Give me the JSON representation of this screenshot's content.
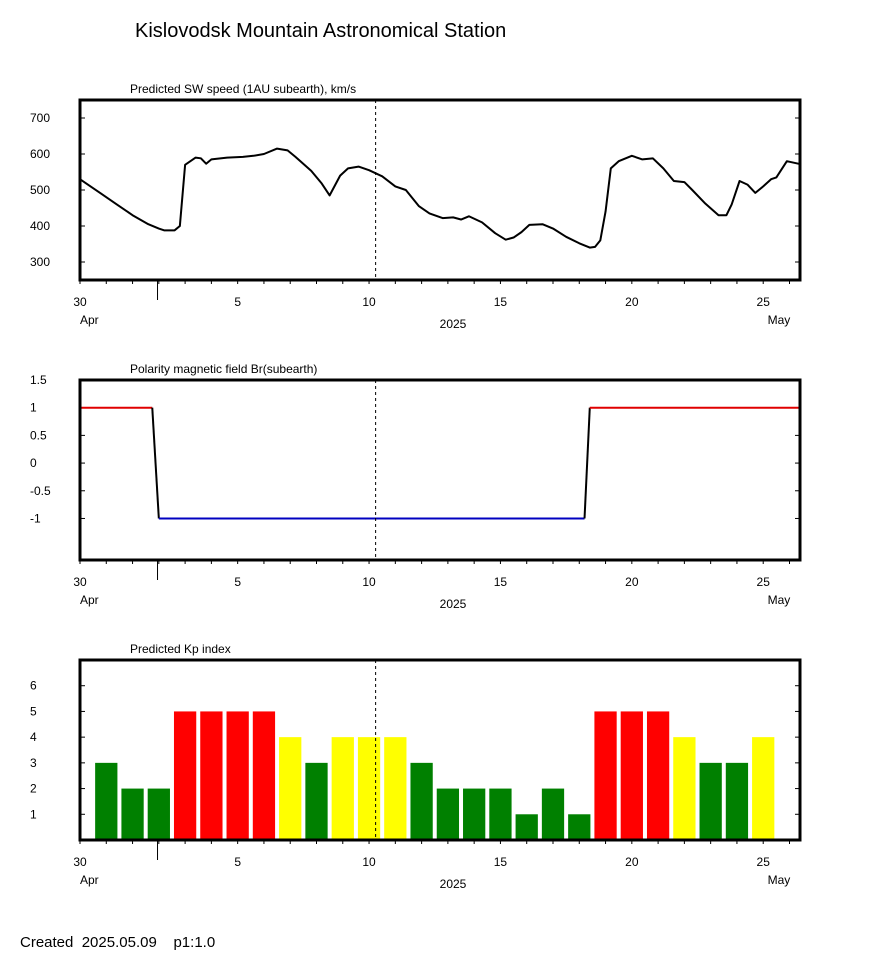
{
  "page": {
    "title": "Kislovodsk Mountain Astronomical Station",
    "created_label": "Created",
    "created_date": "2025.05.09",
    "page_code": "p1:1.0"
  },
  "x_axis": {
    "tick_labels": [
      "30",
      "5",
      "10",
      "15",
      "20",
      "25"
    ],
    "month_labels": [
      "Apr",
      "May"
    ],
    "year_label": "2025"
  },
  "colors": {
    "axis": "#000000",
    "positive_polarity": "#e00000",
    "negative_polarity": "#0000c0",
    "kp_quiet": "#008000",
    "kp_active": "#ffff00",
    "kp_storm": "#ff0000"
  },
  "chart_data": [
    {
      "type": "line",
      "title": "Predicted SW speed (1AU subearth), km/s",
      "x_unit": "days from 2025-04-01",
      "ylim": [
        250,
        750
      ],
      "yticks": [
        "700",
        "600",
        "500",
        "400",
        "300"
      ],
      "ytick_values": [
        700,
        600,
        500,
        400,
        300
      ],
      "current_date_marker": 9.25,
      "x": [
        -2.0,
        -1.8,
        -1.2,
        -0.6,
        0.0,
        0.6,
        1.0,
        1.2,
        1.6,
        1.8,
        2.0,
        2.4,
        2.6,
        2.8,
        3.0,
        3.6,
        4.2,
        4.6,
        5.0,
        5.5,
        5.9,
        6.2,
        6.8,
        7.2,
        7.5,
        7.9,
        8.2,
        8.6,
        9.0,
        9.5,
        10.0,
        10.4,
        10.9,
        11.3,
        11.8,
        12.2,
        12.5,
        12.8,
        13.3,
        13.8,
        14.2,
        14.5,
        14.8,
        15.1,
        15.6,
        16.0,
        16.5,
        17.0,
        17.4,
        17.6,
        17.8,
        18.0,
        18.2,
        18.5,
        19.0,
        19.4,
        19.8,
        20.2,
        20.6,
        21.0,
        21.3,
        21.8,
        22.3,
        22.6,
        22.8,
        23.1,
        23.4,
        23.7,
        24.0,
        24.3,
        24.5,
        24.9,
        25.4
      ],
      "values": [
        530,
        520,
        490,
        460,
        430,
        405,
        393,
        388,
        388,
        400,
        570,
        590,
        588,
        573,
        585,
        590,
        592,
        595,
        600,
        615,
        610,
        592,
        553,
        518,
        485,
        540,
        560,
        565,
        555,
        538,
        510,
        500,
        455,
        435,
        422,
        424,
        418,
        427,
        410,
        380,
        362,
        368,
        383,
        403,
        405,
        393,
        370,
        352,
        340,
        342,
        360,
        440,
        560,
        580,
        595,
        585,
        588,
        560,
        525,
        522,
        500,
        462,
        430,
        430,
        460,
        525,
        515,
        492,
        510,
        530,
        535,
        580,
        572
      ]
    },
    {
      "type": "line",
      "title": "Polarity magnetic field  Br(subearth)",
      "x_unit": "days from 2025-04-01",
      "ylim": [
        -1.75,
        1.5
      ],
      "yticks": [
        "1.5",
        "1",
        "0.5",
        "0",
        "-0.5",
        "-1"
      ],
      "ytick_values": [
        1.5,
        1,
        0.5,
        0,
        -0.5,
        -1
      ],
      "current_date_marker": 9.25,
      "segments": [
        {
          "polarity": "positive",
          "x": [
            -2.0,
            0.75
          ],
          "value": 1
        },
        {
          "polarity": "transition",
          "x": [
            0.75,
            1.0
          ],
          "values": [
            1,
            -1
          ]
        },
        {
          "polarity": "negative",
          "x": [
            1.0,
            17.2
          ],
          "value": -1
        },
        {
          "polarity": "transition",
          "x": [
            17.2,
            17.4
          ],
          "values": [
            -1,
            1
          ]
        },
        {
          "polarity": "positive",
          "x": [
            17.4,
            25.4
          ],
          "value": 1
        }
      ]
    },
    {
      "type": "bar",
      "title": "Predicted Kp index",
      "x_unit": "days from 2025-04-01",
      "ylim": [
        0,
        7
      ],
      "yticks": [
        "6",
        "5",
        "4",
        "3",
        "2",
        "1"
      ],
      "ytick_values": [
        6,
        5,
        4,
        3,
        2,
        1
      ],
      "current_date_marker": 9.25,
      "x": [
        -1,
        0,
        1,
        2,
        3,
        4,
        5,
        6,
        7,
        8,
        9,
        10,
        11,
        12,
        13,
        14,
        15,
        16,
        17,
        18,
        19,
        20,
        21,
        22,
        23,
        24
      ],
      "values": [
        3,
        2,
        2,
        5,
        5,
        5,
        5,
        4,
        3,
        4,
        4,
        4,
        3,
        2,
        2,
        2,
        1,
        2,
        1,
        5,
        5,
        5,
        4,
        3,
        3,
        4
      ]
    }
  ]
}
